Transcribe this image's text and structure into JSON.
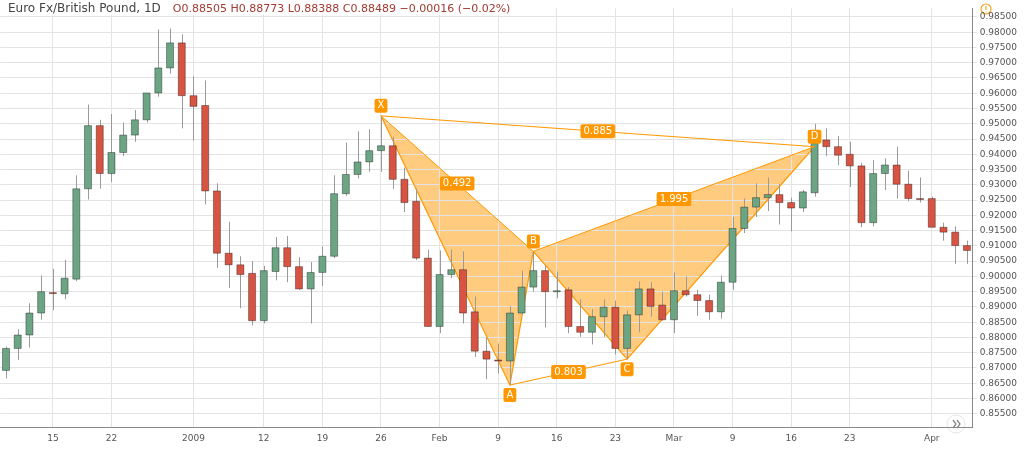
{
  "chart_data": {
    "type": "candlestick",
    "title": "Euro Fx/British Pound, 1D",
    "subtitle": "O0.88505 H0.88773 L0.88388 C0.88489 −0.00016 (−0.02%)",
    "categories": [
      null,
      null,
      null,
      null,
      "15",
      null,
      null,
      null,
      null,
      "22",
      null,
      null,
      null,
      null,
      null,
      null,
      "2009",
      null,
      null,
      null,
      null,
      null,
      "12",
      null,
      null,
      null,
      null,
      "19",
      null,
      null,
      null,
      null,
      "26",
      null,
      null,
      null,
      null,
      "Feb",
      null,
      null,
      null,
      null,
      "9",
      null,
      null,
      null,
      null,
      "16",
      null,
      null,
      null,
      null,
      "23",
      null,
      null,
      null,
      null,
      "Mar",
      null,
      null,
      null,
      null,
      "9",
      null,
      null,
      null,
      null,
      "16",
      null,
      null,
      null,
      null,
      "23",
      null,
      null,
      null,
      null,
      null,
      null,
      "Apr",
      null,
      null,
      null
    ],
    "ohlc": [
      [
        0.8692,
        0.877,
        0.8666,
        0.8764
      ],
      [
        0.8764,
        0.8827,
        0.8726,
        0.8808
      ],
      [
        0.8808,
        0.8912,
        0.8767,
        0.888
      ],
      [
        0.888,
        0.9003,
        0.8858,
        0.895
      ],
      [
        0.8947,
        0.9025,
        0.889,
        0.8945
      ],
      [
        0.8943,
        0.9054,
        0.8925,
        0.8994
      ],
      [
        0.8991,
        0.9331,
        0.8984,
        0.9287
      ],
      [
        0.9287,
        0.9563,
        0.9252,
        0.9494
      ],
      [
        0.9494,
        0.9513,
        0.9287,
        0.9337
      ],
      [
        0.9337,
        0.9532,
        0.9309,
        0.9406
      ],
      [
        0.9406,
        0.9504,
        0.9394,
        0.9463
      ],
      [
        0.9463,
        0.9545,
        0.9441,
        0.9513
      ],
      [
        0.9513,
        0.9601,
        0.9504,
        0.9601
      ],
      [
        0.9601,
        0.9809,
        0.9589,
        0.9683
      ],
      [
        0.9683,
        0.9812,
        0.9664,
        0.9765
      ],
      [
        0.9765,
        0.9793,
        0.9485,
        0.9592
      ],
      [
        0.9592,
        0.9655,
        0.9445,
        0.9557
      ],
      [
        0.956,
        0.9642,
        0.9236,
        0.928
      ],
      [
        0.928,
        0.9305,
        0.9028,
        0.9076
      ],
      [
        0.9076,
        0.9179,
        0.8962,
        0.9038
      ],
      [
        0.9038,
        0.9066,
        0.8896,
        0.9006
      ],
      [
        0.901,
        0.905,
        0.884,
        0.8855
      ],
      [
        0.8855,
        0.9035,
        0.8846,
        0.9019
      ],
      [
        0.9016,
        0.9129,
        0.8987,
        0.9094
      ],
      [
        0.9094,
        0.9132,
        0.8981,
        0.9032
      ],
      [
        0.9032,
        0.9063,
        0.8956,
        0.8959
      ],
      [
        0.8959,
        0.9047,
        0.8846,
        0.9013
      ],
      [
        0.9013,
        0.9098,
        0.8969,
        0.9066
      ],
      [
        0.9066,
        0.9331,
        0.906,
        0.9271
      ],
      [
        0.9271,
        0.9438,
        0.9264,
        0.9334
      ],
      [
        0.9334,
        0.9475,
        0.9321,
        0.9375
      ],
      [
        0.9375,
        0.9482,
        0.9343,
        0.9412
      ],
      [
        0.9412,
        0.9526,
        0.9343,
        0.9428
      ],
      [
        0.9428,
        0.9457,
        0.9287,
        0.9318
      ],
      [
        0.9318,
        0.9356,
        0.9211,
        0.9242
      ],
      [
        0.9246,
        0.9287,
        0.9054,
        0.906
      ],
      [
        0.906,
        0.9088,
        0.8836,
        0.8836
      ],
      [
        0.8836,
        0.9085,
        0.8814,
        0.9006
      ],
      [
        0.9006,
        0.9088,
        0.8994,
        0.9022
      ],
      [
        0.9022,
        0.9082,
        0.8846,
        0.888
      ],
      [
        0.8884,
        0.8934,
        0.8736,
        0.8755
      ],
      [
        0.8755,
        0.8799,
        0.8663,
        0.8729
      ],
      [
        0.8726,
        0.878,
        0.8682,
        0.8724
      ],
      [
        0.8723,
        0.8902,
        0.8644,
        0.888
      ],
      [
        0.888,
        0.9019,
        0.8877,
        0.8965
      ],
      [
        0.8965,
        0.9082,
        0.895,
        0.9019
      ],
      [
        0.9019,
        0.9035,
        0.8833,
        0.895
      ],
      [
        0.895,
        0.9016,
        0.8928,
        0.8953
      ],
      [
        0.8956,
        0.8965,
        0.8814,
        0.8836
      ],
      [
        0.8836,
        0.8925,
        0.8802,
        0.8817
      ],
      [
        0.8817,
        0.8893,
        0.8777,
        0.8868
      ],
      [
        0.8868,
        0.8925,
        0.8802,
        0.8899
      ],
      [
        0.8899,
        0.8921,
        0.8744,
        0.8764
      ],
      [
        0.8764,
        0.8887,
        0.8729,
        0.8874
      ],
      [
        0.8874,
        0.8984,
        0.8817,
        0.8959
      ],
      [
        0.8959,
        0.8981,
        0.8868,
        0.8902
      ],
      [
        0.8906,
        0.895,
        0.8855,
        0.8858
      ],
      [
        0.8858,
        0.9013,
        0.8814,
        0.8953
      ],
      [
        0.8953,
        0.9,
        0.8934,
        0.894
      ],
      [
        0.894,
        0.8956,
        0.8871,
        0.8921
      ],
      [
        0.8921,
        0.894,
        0.8858,
        0.8884
      ],
      [
        0.8884,
        0.9003,
        0.8862,
        0.8981
      ],
      [
        0.8981,
        0.9195,
        0.8956,
        0.9157
      ],
      [
        0.9157,
        0.9255,
        0.9142,
        0.9227
      ],
      [
        0.9227,
        0.9305,
        0.9195,
        0.9258
      ],
      [
        0.9258,
        0.9324,
        0.9214,
        0.9268
      ],
      [
        0.9268,
        0.9302,
        0.917,
        0.9242
      ],
      [
        0.9242,
        0.9258,
        0.9148,
        0.9224
      ],
      [
        0.9224,
        0.9283,
        0.9211,
        0.9277
      ],
      [
        0.9274,
        0.95,
        0.9261,
        0.9438
      ],
      [
        0.9447,
        0.9485,
        0.9394,
        0.9425
      ],
      [
        0.9425,
        0.946,
        0.9365,
        0.9397
      ],
      [
        0.94,
        0.9441,
        0.9293,
        0.9362
      ],
      [
        0.9362,
        0.9372,
        0.9161,
        0.9176
      ],
      [
        0.9176,
        0.9381,
        0.9164,
        0.9337
      ],
      [
        0.9337,
        0.9387,
        0.9283,
        0.9365
      ],
      [
        0.9365,
        0.9425,
        0.9255,
        0.9302
      ],
      [
        0.9302,
        0.9346,
        0.9246,
        0.9255
      ],
      [
        0.9255,
        0.9324,
        0.9242,
        0.9253
      ],
      [
        0.9255,
        0.9261,
        0.9161,
        0.9161
      ],
      [
        0.9161,
        0.9176,
        0.9117,
        0.9145
      ],
      [
        0.9145,
        0.9164,
        0.9041,
        0.9101
      ],
      [
        0.9101,
        0.9117,
        0.9041,
        0.9085
      ]
    ],
    "colors": [
      "#6ba583",
      "#6ba583",
      "#6ba583",
      "#6ba583",
      "#d75442",
      "#6ba583",
      "#6ba583",
      "#6ba583",
      "#d75442",
      "#6ba583",
      "#6ba583",
      "#6ba583",
      "#6ba583",
      "#6ba583",
      "#6ba583",
      "#d75442",
      "#d75442",
      "#d75442",
      "#d75442",
      "#d75442",
      "#d75442",
      "#d75442",
      "#6ba583",
      "#6ba583",
      "#d75442",
      "#d75442",
      "#6ba583",
      "#6ba583",
      "#6ba583",
      "#6ba583",
      "#6ba583",
      "#6ba583",
      "#6ba583",
      "#d75442",
      "#d75442",
      "#d75442",
      "#d75442",
      "#6ba583",
      "#6ba583",
      "#d75442",
      "#d75442",
      "#d75442",
      "#d75442",
      "#6ba583",
      "#6ba583",
      "#6ba583",
      "#d75442",
      "#6ba583",
      "#d75442",
      "#d75442",
      "#6ba583",
      "#6ba583",
      "#d75442",
      "#6ba583",
      "#6ba583",
      "#d75442",
      "#d75442",
      "#6ba583",
      "#d75442",
      "#d75442",
      "#d75442",
      "#6ba583",
      "#6ba583",
      "#6ba583",
      "#6ba583",
      "#6ba583",
      "#d75442",
      "#d75442",
      "#6ba583",
      "#6ba583",
      "#d75442",
      "#d75442",
      "#d75442",
      "#d75442",
      "#6ba583",
      "#6ba583",
      "#d75442",
      "#d75442",
      "#d75442",
      "#d75442",
      "#d75442",
      "#d75442",
      "#d75442"
    ],
    "series": [
      {
        "type": "line",
        "color": "#ff9800",
        "values": [
          null,
          null,
          null,
          null,
          null,
          null,
          null,
          null,
          null,
          null,
          null,
          null,
          null,
          null,
          null,
          null,
          null,
          null,
          null,
          null,
          null,
          null,
          null,
          null,
          null,
          null,
          null,
          null,
          null,
          null,
          null,
          null,
          0.9526,
          null,
          null,
          null,
          null,
          null,
          null,
          null,
          null,
          null,
          null,
          0.8644,
          null,
          0.9082,
          null,
          null,
          null,
          null,
          null,
          null,
          null,
          0.8729,
          null,
          null,
          null,
          null,
          null,
          null,
          null,
          null,
          null,
          null,
          null,
          null,
          null,
          null,
          null,
          0.9425,
          null,
          null,
          null,
          null,
          null,
          null,
          null,
          null,
          null,
          null,
          null,
          null,
          null
        ],
        "value_labels": [
          null,
          null,
          null,
          null,
          null,
          null,
          null,
          null,
          null,
          null,
          null,
          null,
          null,
          null,
          null,
          null,
          null,
          null,
          null,
          null,
          null,
          null,
          null,
          null,
          null,
          null,
          null,
          null,
          null,
          null,
          null,
          null,
          "X",
          null,
          null,
          null,
          null,
          null,
          null,
          null,
          null,
          null,
          null,
          "A",
          null,
          "B",
          null,
          null,
          null,
          null,
          null,
          null,
          null,
          "C",
          null,
          null,
          null,
          null,
          null,
          null,
          null,
          null,
          null,
          null,
          null,
          null,
          null,
          null,
          null,
          "D",
          null,
          null,
          null,
          null,
          null,
          null,
          null,
          null,
          null,
          null,
          null,
          null,
          null
        ]
      }
    ],
    "annotations": [
      "0.885",
      "0.492",
      "1.995",
      "0.803"
    ],
    "ylim": [
      0.8506,
      0.9878
    ],
    "yticks": [
      {
        "value": 0.855,
        "label": "0.85500"
      },
      {
        "value": 0.86,
        "label": "0.86000"
      },
      {
        "value": 0.865,
        "label": "0.86500"
      },
      {
        "value": 0.87,
        "label": "0.87000"
      },
      {
        "value": 0.875,
        "label": "0.87500"
      },
      {
        "value": 0.88,
        "label": "0.88000"
      },
      {
        "value": 0.885,
        "label": "0.88500"
      },
      {
        "value": 0.89,
        "label": "0.89000"
      },
      {
        "value": 0.895,
        "label": "0.89500"
      },
      {
        "value": 0.9,
        "label": "0.90000"
      },
      {
        "value": 0.905,
        "label": "0.90500"
      },
      {
        "value": 0.91,
        "label": "0.91000"
      },
      {
        "value": 0.915,
        "label": "0.91500"
      },
      {
        "value": 0.92,
        "label": "0.92000"
      },
      {
        "value": 0.925,
        "label": "0.92500"
      },
      {
        "value": 0.93,
        "label": "0.93000"
      },
      {
        "value": 0.935,
        "label": "0.93500"
      },
      {
        "value": 0.94,
        "label": "0.94000"
      },
      {
        "value": 0.945,
        "label": "0.94500"
      },
      {
        "value": 0.95,
        "label": "0.95000"
      },
      {
        "value": 0.955,
        "label": "0.95500"
      },
      {
        "value": 0.96,
        "label": "0.96000"
      },
      {
        "value": 0.965,
        "label": "0.96500"
      },
      {
        "value": 0.97,
        "label": "0.97000"
      },
      {
        "value": 0.975,
        "label": "0.97500"
      },
      {
        "value": 0.98,
        "label": "0.98000"
      },
      {
        "value": 0.985,
        "label": "0.98500"
      }
    ],
    "grid": true,
    "legend": false,
    "marker": "none"
  }
}
